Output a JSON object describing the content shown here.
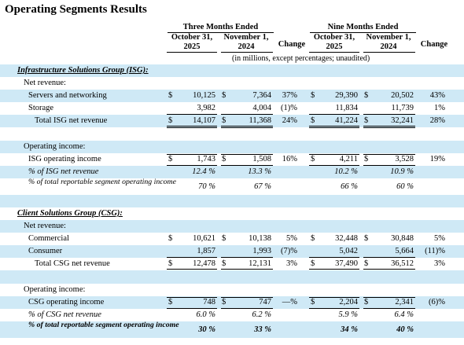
{
  "title": "Operating Segments Results",
  "header": {
    "three_months": "Three Months Ended",
    "nine_months": "Nine Months Ended",
    "p1_line1": "October 31,",
    "p1_line2": "2025",
    "p2_line1": "November 1,",
    "p2_line2": "2024",
    "change": "Change",
    "note": "(in millions, except percentages; unaudited)"
  },
  "rows": [
    {
      "type": "section",
      "label": "Infrastructure Solutions Group (ISG):",
      "shade": true
    },
    {
      "type": "label",
      "label": "Net revenue:",
      "indent": 1,
      "shade": false
    },
    {
      "type": "data",
      "label": "Servers and networking",
      "indent": 2,
      "shade": true,
      "dollar": true,
      "values": [
        "10,125",
        "7,364",
        "37%",
        "29,390",
        "20,502",
        "43%"
      ]
    },
    {
      "type": "data",
      "label": "Storage",
      "indent": 2,
      "shade": false,
      "values": [
        "3,982",
        "4,004",
        "(1)%",
        "11,834",
        "11,739",
        "1%"
      ],
      "underline": true
    },
    {
      "type": "data",
      "label": "Total ISG net revenue",
      "indent": 3,
      "shade": true,
      "dollar": true,
      "values": [
        "14,107",
        "11,368",
        "24%",
        "41,224",
        "32,241",
        "28%"
      ],
      "double": true
    },
    {
      "type": "blank",
      "shade": false
    },
    {
      "type": "label",
      "label": "Operating income:",
      "indent": 1,
      "shade": true
    },
    {
      "type": "data",
      "label": "ISG operating income",
      "indent": 2,
      "shade": false,
      "dollar": true,
      "values": [
        "1,743",
        "1,508",
        "16%",
        "4,211",
        "3,528",
        "19%"
      ],
      "box": true
    },
    {
      "type": "data",
      "label": "% of ISG net revenue",
      "indent": 2,
      "shade": true,
      "style": "italic",
      "values": [
        "12.4 %",
        "13.3 %",
        "",
        "10.2 %",
        "10.9 %",
        ""
      ]
    },
    {
      "type": "tall",
      "label": "% of total reportable segment operating income",
      "indent": 2,
      "shade": false,
      "style": "italic",
      "values": [
        "70 %",
        "67 %",
        "",
        "66 %",
        "60 %",
        ""
      ]
    },
    {
      "type": "blank",
      "shade": true
    },
    {
      "type": "section",
      "label": "Client Solutions Group (CSG):",
      "shade": false
    },
    {
      "type": "label",
      "label": "Net revenue:",
      "indent": 1,
      "shade": true
    },
    {
      "type": "data",
      "label": "Commercial",
      "indent": 2,
      "shade": false,
      "dollar": true,
      "values": [
        "10,621",
        "10,138",
        "5%",
        "32,448",
        "30,848",
        "5%"
      ]
    },
    {
      "type": "data",
      "label": "Consumer",
      "indent": 2,
      "shade": true,
      "values": [
        "1,857",
        "1,993",
        "(7)%",
        "5,042",
        "5,664",
        "(11)%"
      ],
      "underline": true
    },
    {
      "type": "data",
      "label": "Total CSG net revenue",
      "indent": 3,
      "shade": false,
      "dollar": true,
      "values": [
        "12,478",
        "12,131",
        "3%",
        "37,490",
        "36,512",
        "3%"
      ],
      "double": true
    },
    {
      "type": "blank",
      "shade": true
    },
    {
      "type": "label",
      "label": "Operating income:",
      "indent": 1,
      "shade": false
    },
    {
      "type": "data",
      "label": "CSG operating income",
      "indent": 2,
      "shade": true,
      "dollar": true,
      "values": [
        "748",
        "747",
        "—%",
        "2,204",
        "2,341",
        "(6)%"
      ],
      "box": true
    },
    {
      "type": "data",
      "label": "% of CSG net revenue",
      "indent": 2,
      "shade": false,
      "style": "italic",
      "values": [
        "6.0 %",
        "6.2 %",
        "",
        "5.9 %",
        "6.4 %",
        ""
      ]
    },
    {
      "type": "tall",
      "label": "% of total reportable segment operating income",
      "indent": 2,
      "shade": true,
      "style": "bolditalic",
      "values": [
        "30 %",
        "33 %",
        "",
        "34 %",
        "40 %",
        ""
      ]
    }
  ]
}
